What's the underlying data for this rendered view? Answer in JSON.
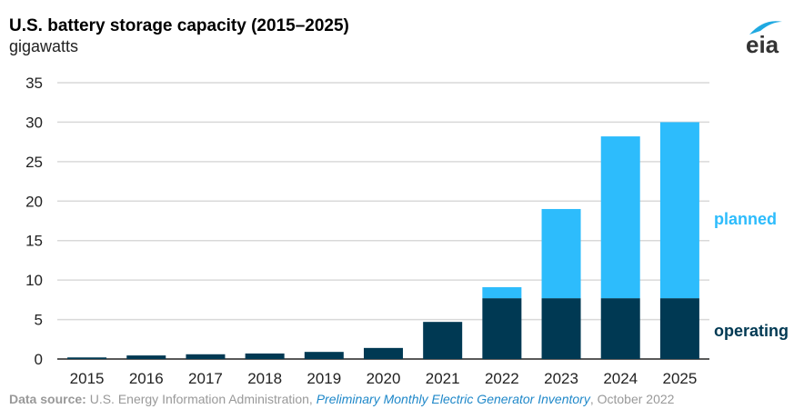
{
  "chart_data": {
    "type": "bar",
    "stacked": true,
    "title": "U.S. battery storage capacity (2015–2025)",
    "subtitle": "gigawatts",
    "categories": [
      "2015",
      "2016",
      "2017",
      "2018",
      "2019",
      "2020",
      "2021",
      "2022",
      "2023",
      "2024",
      "2025"
    ],
    "series": [
      {
        "name": "operating",
        "color": "#003953",
        "values": [
          0.2,
          0.45,
          0.6,
          0.7,
          0.9,
          1.4,
          4.7,
          7.7,
          7.7,
          7.7,
          7.7
        ]
      },
      {
        "name": "planned",
        "color": "#2dbcfc",
        "values": [
          0,
          0,
          0,
          0,
          0,
          0,
          0,
          1.4,
          11.3,
          20.5,
          22.3
        ]
      }
    ],
    "yticks": [
      0,
      5,
      10,
      15,
      20,
      25,
      30,
      35
    ],
    "ylim": [
      0,
      35
    ],
    "grid": true,
    "legend": "right, inline labels"
  },
  "source": {
    "label": "Data source:",
    "org": "U.S. Energy Information Administration,",
    "publication": "Preliminary Monthly Electric Generator Inventory",
    "date": ", October 2022"
  },
  "logo": "eia"
}
